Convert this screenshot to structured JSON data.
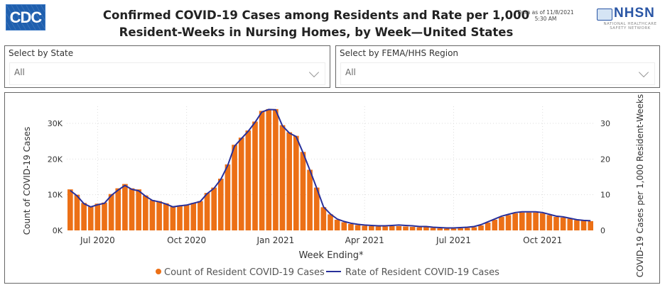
{
  "header": {
    "logo_text": "CDC",
    "title_line1": "Confirmed COVID-19 Cases among Residents and Rate per 1,000",
    "title_line2": "Resident-Weeks in Nursing Homes, by Week—United States",
    "data_as_of_line1": "Data as of 11/8/2021",
    "data_as_of_line2": "5:30 AM",
    "nhsn_logo_text": "NHSN",
    "nhsn_sub_line1": "NATIONAL HEALTHCARE",
    "nhsn_sub_line2": "SAFETY NETWORK"
  },
  "filters": {
    "state": {
      "label": "Select by State",
      "value": "All"
    },
    "region": {
      "label": "Select by FEMA/HHS Region",
      "value": "All"
    }
  },
  "colors": {
    "bar": "#ec7016",
    "line": "#28309a",
    "grid": "#dddddd"
  },
  "chart_data": {
    "type": "bar",
    "title": "",
    "xlabel": "Week Ending*",
    "ylabel": "Count of COVID-19 Cases",
    "y2label": "COVID-19 Cases per 1,000 Resident-Weeks",
    "ylim": [
      0,
      33000
    ],
    "y2lim": [
      0,
      33
    ],
    "yticks": [
      {
        "v": 0,
        "label": "0K"
      },
      {
        "v": 10000,
        "label": "10K"
      },
      {
        "v": 20000,
        "label": "20K"
      },
      {
        "v": 30000,
        "label": "30K"
      }
    ],
    "y2ticks": [
      {
        "v": 0,
        "label": "0"
      },
      {
        "v": 10,
        "label": "10"
      },
      {
        "v": 20,
        "label": "20"
      },
      {
        "v": 30,
        "label": "30"
      }
    ],
    "xticks": [
      {
        "index": 4.5,
        "label": "Jul 2020"
      },
      {
        "index": 17.5,
        "label": "Oct 2020"
      },
      {
        "index": 30.5,
        "label": "Jan 2021"
      },
      {
        "index": 43.5,
        "label": "Apr 2021"
      },
      {
        "index": 56.5,
        "label": "Jul 2021"
      },
      {
        "index": 69.5,
        "label": "Oct 2021"
      }
    ],
    "grid": true,
    "legend_position": "bottom",
    "series": [
      {
        "name": "Count of Resident COVID-19 Cases",
        "type": "bar",
        "axis": "left",
        "values": [
          11500,
          10000,
          7700,
          6700,
          7500,
          7800,
          10200,
          11800,
          13000,
          11800,
          11500,
          9800,
          8500,
          8200,
          7600,
          6800,
          7000,
          7200,
          7700,
          8200,
          10500,
          12000,
          14500,
          18500,
          24000,
          26000,
          28000,
          30500,
          33500,
          34000,
          34000,
          29500,
          27500,
          26500,
          22000,
          17000,
          12000,
          6500,
          4500,
          3000,
          2300,
          1800,
          1500,
          1300,
          1200,
          1100,
          1100,
          1200,
          1200,
          1100,
          1000,
          900,
          900,
          700,
          600,
          500,
          500,
          600,
          700,
          900,
          1400,
          2200,
          3000,
          3800,
          4300,
          4800,
          5000,
          5000,
          5000,
          4800,
          4300,
          3800,
          3600,
          3300,
          2900,
          2700,
          2600
        ]
      },
      {
        "name": "Rate of Resident COVID-19 Cases",
        "type": "line",
        "axis": "right",
        "values": [
          11.2,
          9.7,
          7.5,
          6.6,
          7.2,
          7.6,
          9.8,
          11.3,
          12.6,
          11.5,
          11.1,
          9.6,
          8.4,
          8.0,
          7.4,
          6.6,
          6.9,
          7.1,
          7.6,
          8.1,
          10.3,
          11.8,
          14.3,
          18.2,
          23.6,
          25.7,
          27.8,
          30.3,
          33.2,
          33.9,
          33.8,
          29.3,
          27.3,
          26.3,
          21.8,
          16.9,
          11.9,
          6.6,
          4.6,
          3.2,
          2.5,
          2.0,
          1.7,
          1.5,
          1.4,
          1.3,
          1.3,
          1.4,
          1.5,
          1.4,
          1.3,
          1.1,
          1.1,
          0.9,
          0.8,
          0.7,
          0.7,
          0.8,
          0.9,
          1.1,
          1.6,
          2.4,
          3.2,
          4.0,
          4.5,
          5.0,
          5.2,
          5.2,
          5.2,
          5.0,
          4.5,
          4.0,
          3.8,
          3.4,
          3.0,
          2.8,
          2.7
        ]
      }
    ]
  }
}
